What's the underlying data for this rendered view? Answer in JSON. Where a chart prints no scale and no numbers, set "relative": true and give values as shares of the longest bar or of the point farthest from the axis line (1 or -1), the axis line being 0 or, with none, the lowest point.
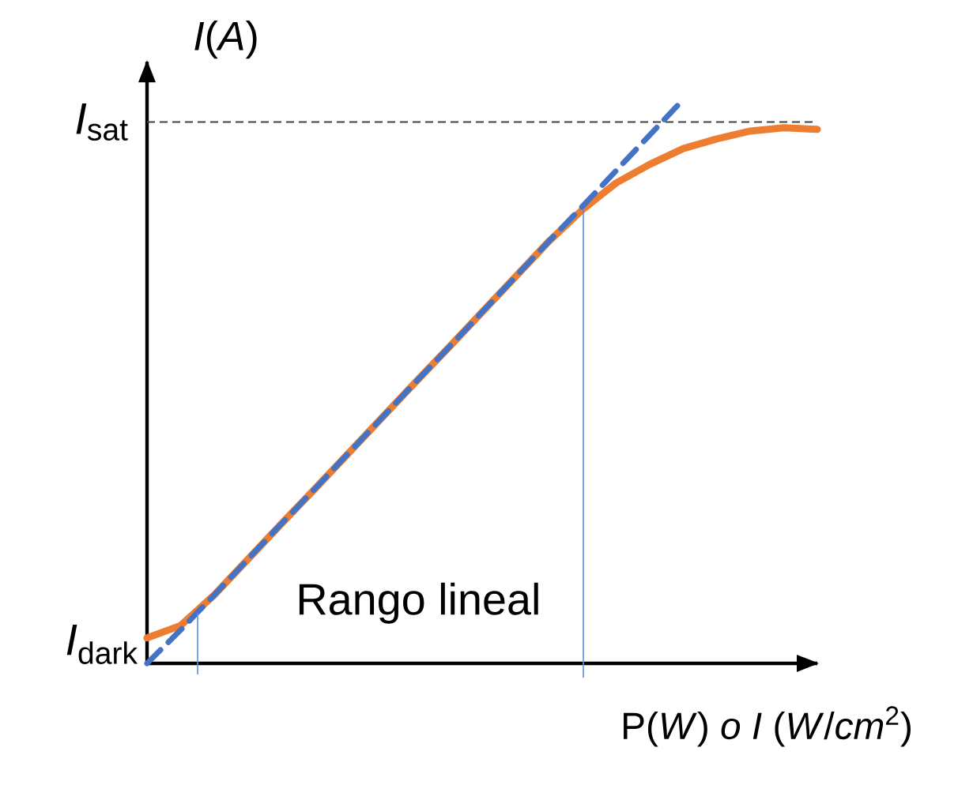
{
  "chart_data": {
    "type": "line",
    "relative": true,
    "xlabel": "P(*W*) *o I* (*W*/*cm*$^{2}$)",
    "ylabel": "*I*(*A*)",
    "categories": [
      null,
      null,
      null,
      null,
      null,
      null,
      null,
      null,
      null,
      null,
      null,
      null,
      null,
      null,
      null,
      null,
      null,
      null,
      null,
      null,
      null
    ],
    "series": [
      {
        "color": "#ed7d31",
        "line_style": "solid",
        "values": [
          0.045,
          0.067,
          0.121,
          0.184,
          0.247,
          0.309,
          0.372,
          0.435,
          0.498,
          0.56,
          0.623,
          0.686,
          0.749,
          0.805,
          0.852,
          0.885,
          0.913,
          0.93,
          0.944,
          0.95,
          0.947
        ]
      },
      {
        "color": "#4472c4",
        "line_style": "dashed",
        "values": [
          0,
          0.059,
          0.121,
          0.184,
          0.247,
          0.309,
          0.372,
          0.435,
          0.498,
          0.56,
          0.623,
          0.686,
          0.749,
          0.811,
          0.874,
          0.937,
          1.0,
          null,
          null,
          null,
          null
        ]
      }
    ],
    "ref_lines": [
      {
        "axis": "y",
        "value": 0.96,
        "label": "*I*$_{sat}$",
        "color": "#404040",
        "line_style": "dashed"
      }
    ],
    "annotations": [
      "*I*$_{dark}$",
      "Rango lineal"
    ]
  }
}
